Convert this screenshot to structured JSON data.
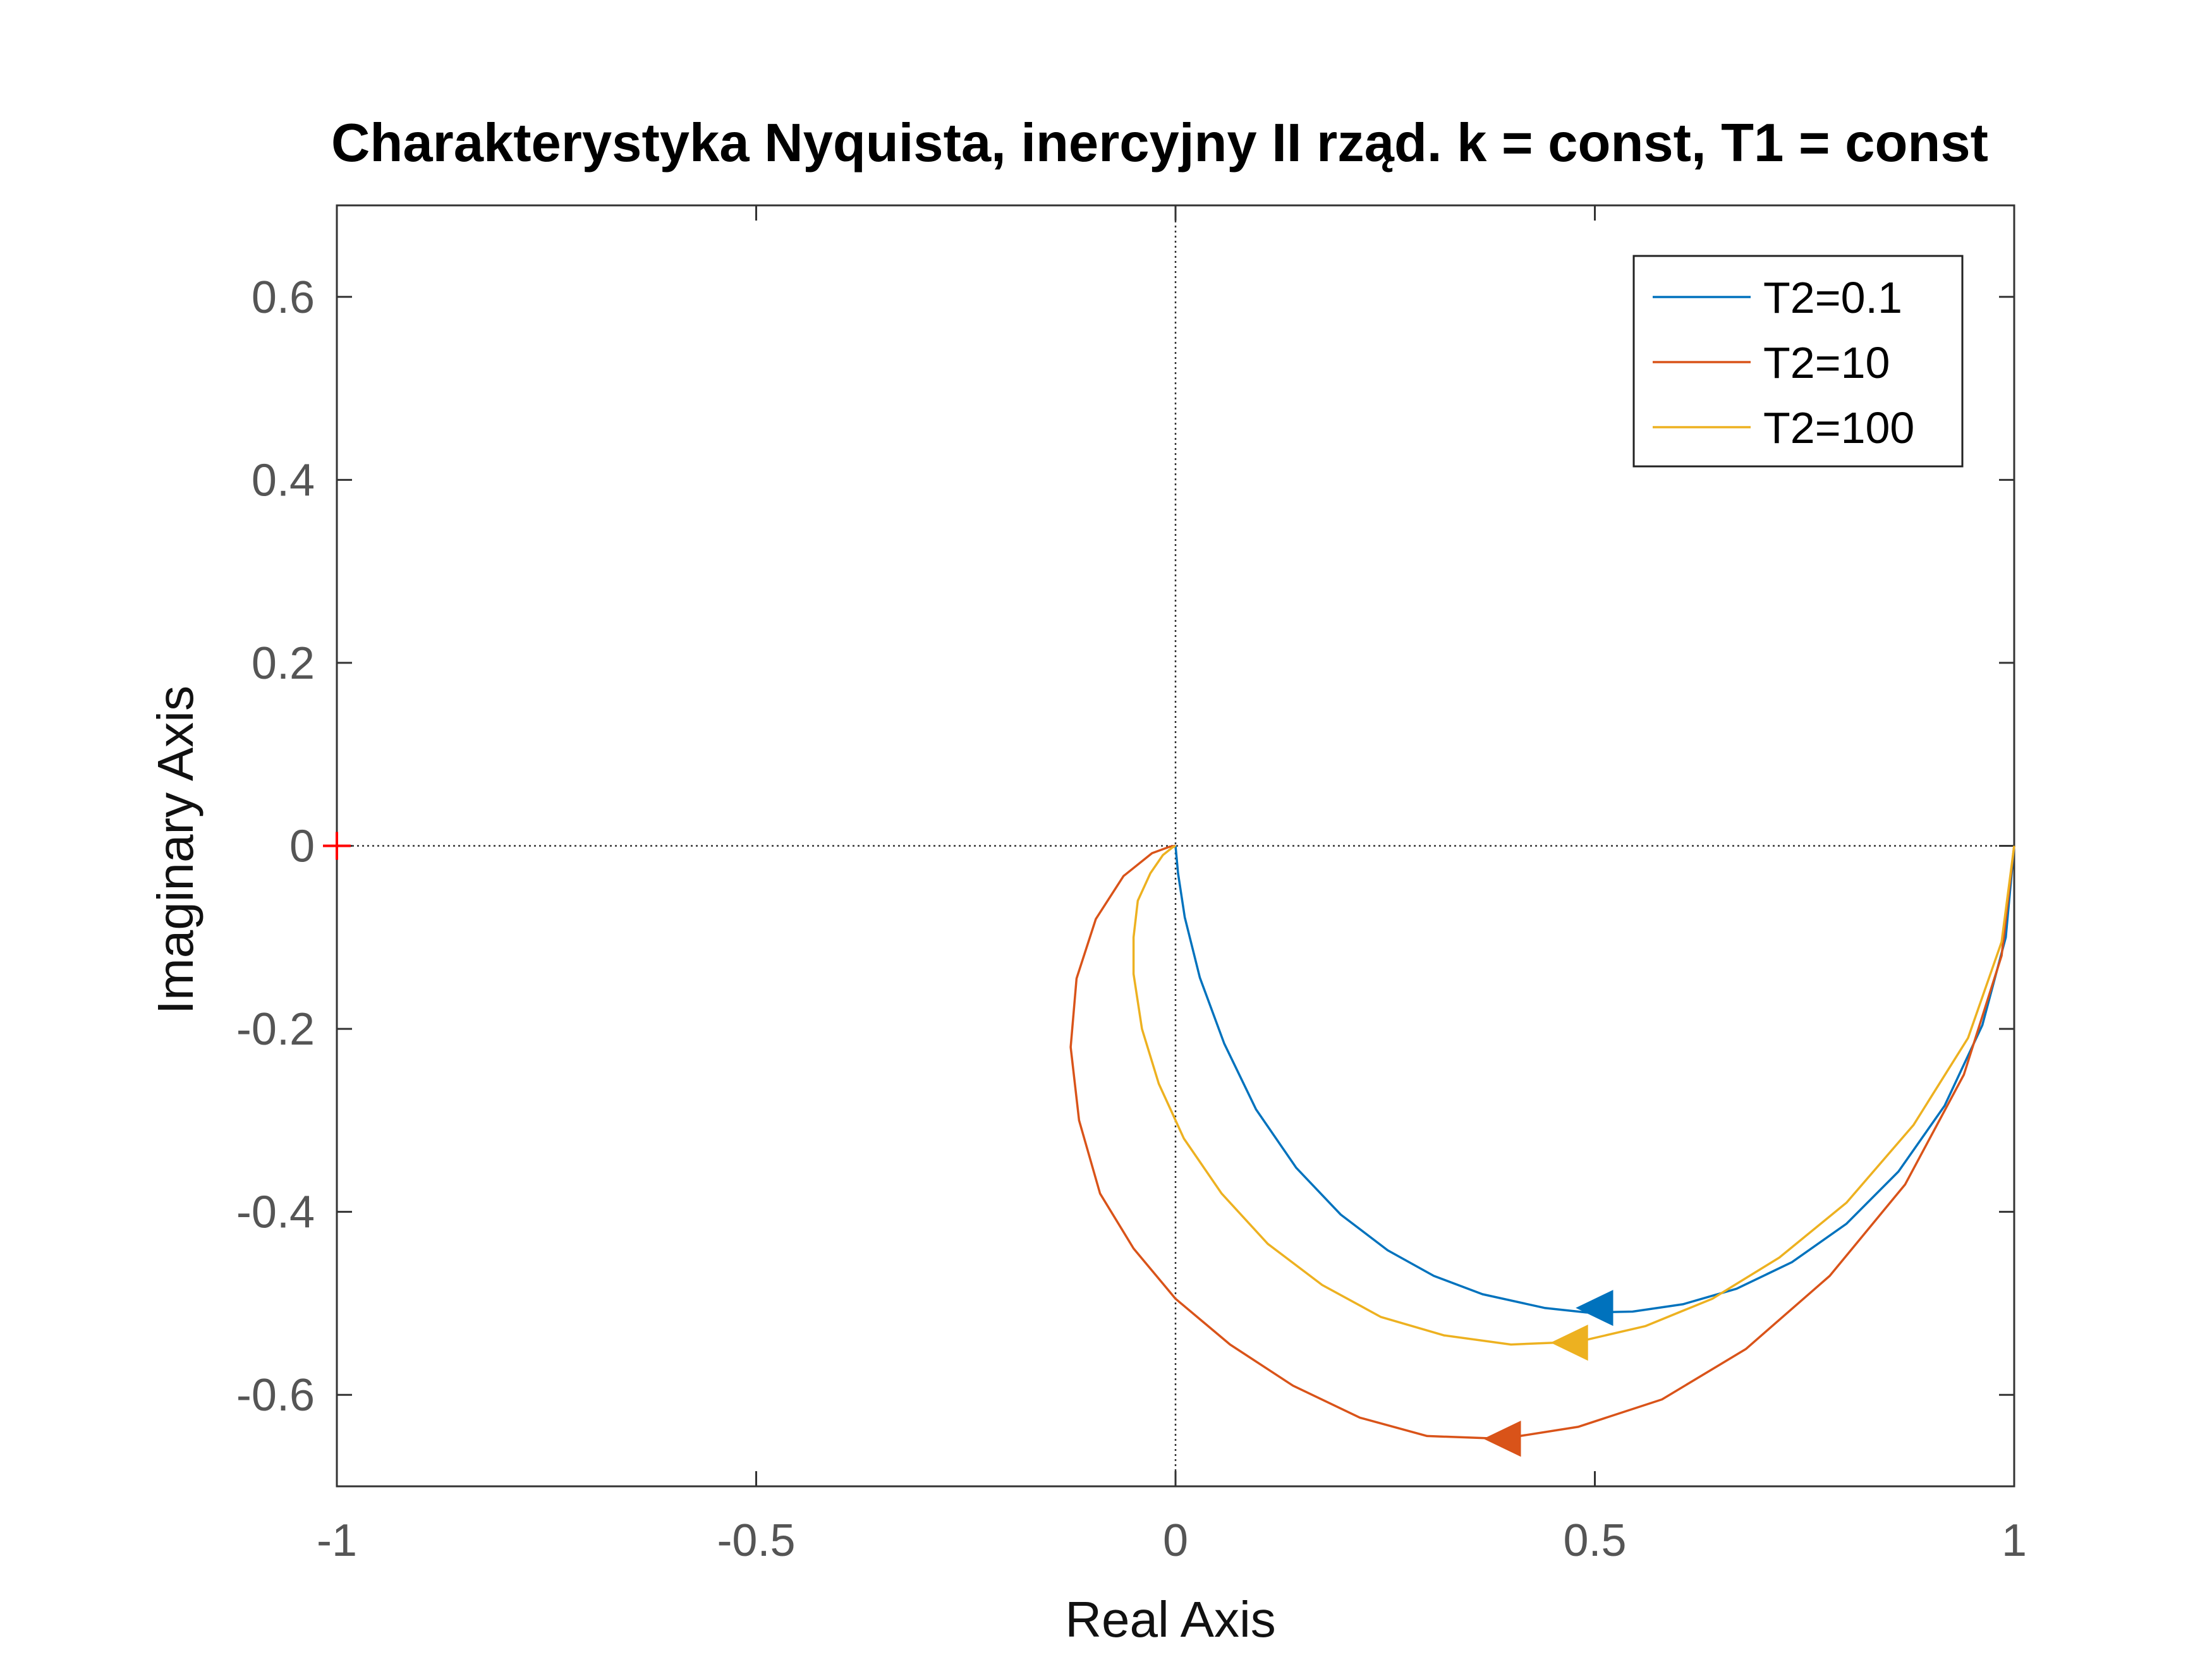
{
  "chart_data": {
    "type": "line",
    "title": "Charakterystyka Nyquista, inercyjny II rząd. k = const, T1 = const",
    "xlabel": "Real Axis",
    "ylabel": "Imaginary Axis",
    "xlim": [
      -1,
      1
    ],
    "ylim": [
      -0.7,
      0.7
    ],
    "xticks": [
      -1,
      -0.5,
      0,
      0.5,
      1
    ],
    "xtick_labels": [
      "-1",
      "-0.5",
      "0",
      "0.5",
      "1"
    ],
    "yticks": [
      -0.6,
      -0.4,
      -0.2,
      0,
      0.2,
      0.4,
      0.6
    ],
    "ytick_labels": [
      "-0.6",
      "-0.4",
      "-0.2",
      "0",
      "0.2",
      "0.4",
      "0.6"
    ],
    "grid": false,
    "legend_position": "top-right",
    "critical_point": {
      "x": -1,
      "y": 0,
      "color": "#ff0000"
    },
    "series": [
      {
        "name": "T2=0.1",
        "color": "#0072BD",
        "x": [
          1.0,
          0.99,
          0.962,
          0.917,
          0.862,
          0.8,
          0.735,
          0.669,
          0.605,
          0.545,
          0.49,
          0.44,
          0.366,
          0.308,
          0.253,
          0.197,
          0.144,
          0.096,
          0.058,
          0.029,
          0.011,
          0.003,
          0.0
        ],
        "y": [
          0.0,
          -0.1,
          -0.196,
          -0.284,
          -0.356,
          -0.413,
          -0.455,
          -0.484,
          -0.501,
          -0.509,
          -0.51,
          -0.505,
          -0.49,
          -0.47,
          -0.442,
          -0.403,
          -0.352,
          -0.288,
          -0.216,
          -0.144,
          -0.078,
          -0.03,
          0.0
        ],
        "arrow": {
          "x": 0.5,
          "y": -0.505
        }
      },
      {
        "name": "T2=10",
        "color": "#D95319",
        "x": [
          1.0,
          0.985,
          0.94,
          0.87,
          0.78,
          0.68,
          0.58,
          0.48,
          0.39,
          0.3,
          0.22,
          0.14,
          0.065,
          0.0,
          -0.05,
          -0.09,
          -0.115,
          -0.125,
          -0.118,
          -0.095,
          -0.062,
          -0.028,
          -0.007,
          0.0
        ],
        "y": [
          0.0,
          -0.12,
          -0.25,
          -0.37,
          -0.47,
          -0.55,
          -0.605,
          -0.635,
          -0.648,
          -0.645,
          -0.625,
          -0.59,
          -0.545,
          -0.495,
          -0.44,
          -0.38,
          -0.3,
          -0.22,
          -0.145,
          -0.08,
          -0.033,
          -0.008,
          -0.001,
          0.0
        ],
        "arrow": {
          "x": 0.39,
          "y": -0.648
        }
      },
      {
        "name": "T2=100",
        "color": "#EDB120",
        "x": [
          1.0,
          0.985,
          0.945,
          0.88,
          0.8,
          0.72,
          0.64,
          0.56,
          0.48,
          0.4,
          0.32,
          0.245,
          0.175,
          0.11,
          0.055,
          0.01,
          -0.02,
          -0.04,
          -0.05,
          -0.05,
          -0.045,
          -0.03,
          -0.015,
          -0.004,
          0.0
        ],
        "y": [
          0.0,
          -0.105,
          -0.21,
          -0.305,
          -0.39,
          -0.45,
          -0.495,
          -0.525,
          -0.542,
          -0.545,
          -0.535,
          -0.515,
          -0.48,
          -0.435,
          -0.38,
          -0.32,
          -0.26,
          -0.2,
          -0.14,
          -0.1,
          -0.06,
          -0.03,
          -0.01,
          -0.002,
          0.0
        ],
        "arrow": {
          "x": 0.47,
          "y": -0.543
        }
      }
    ]
  }
}
